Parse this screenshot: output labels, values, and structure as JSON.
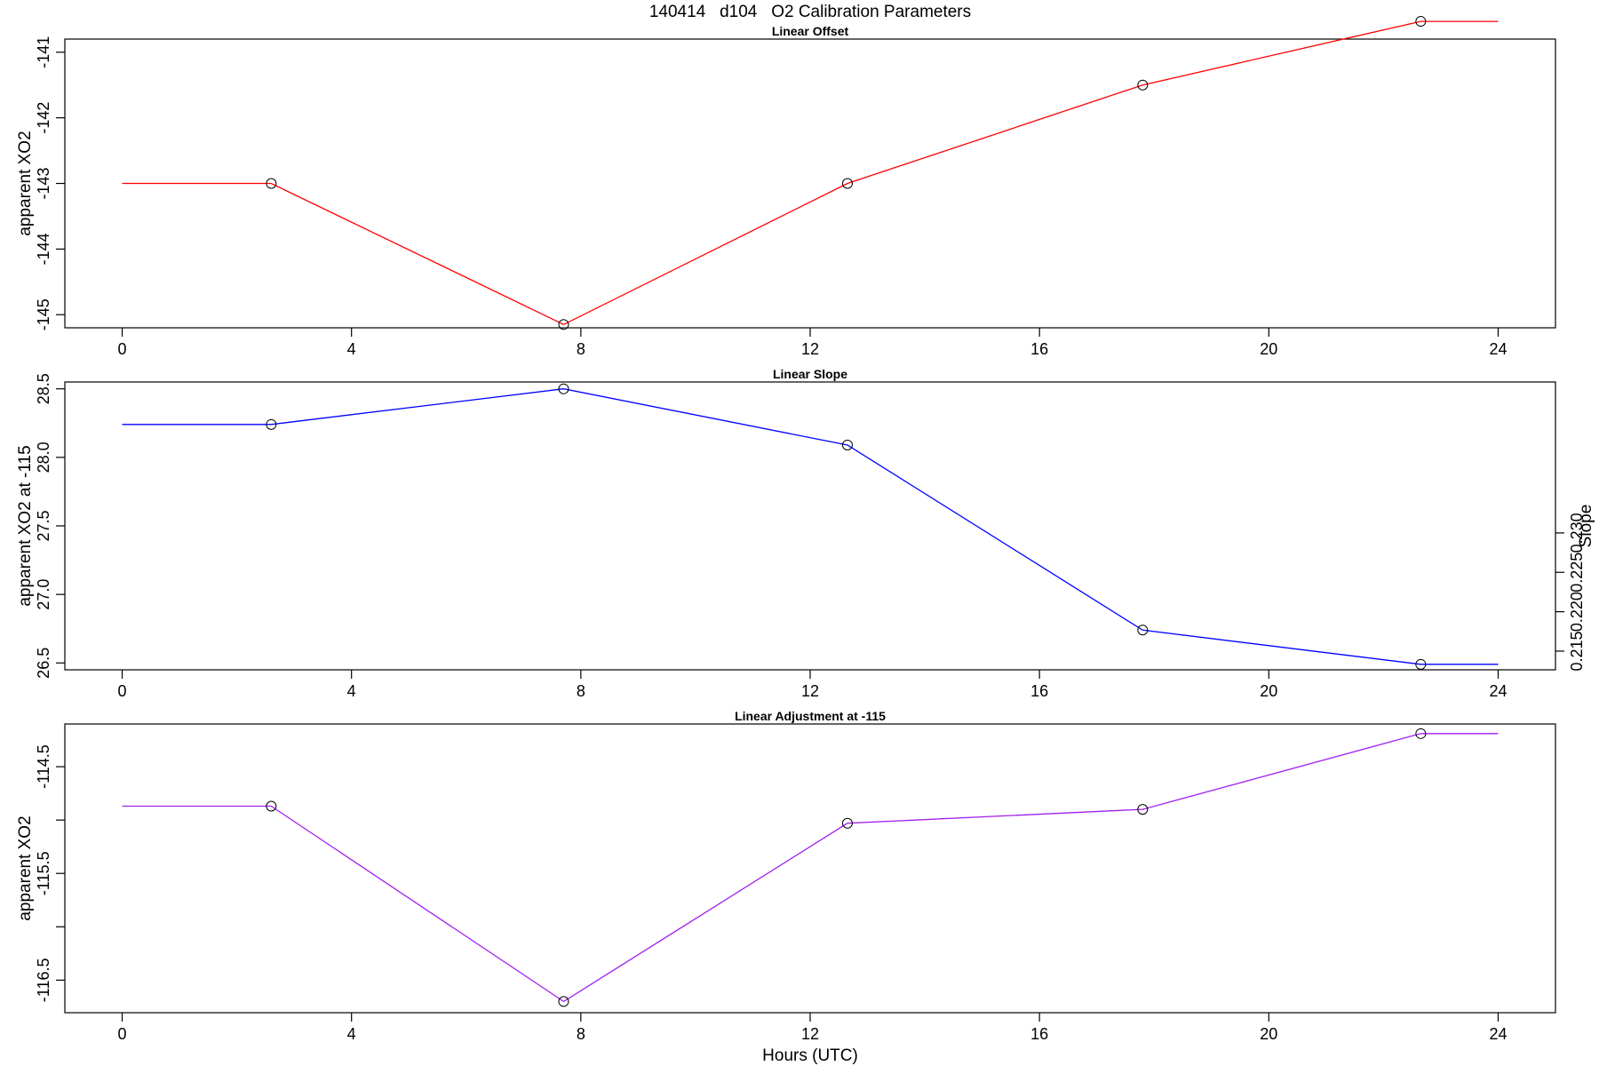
{
  "main_title": "140414   d104   O2 Calibration Parameters",
  "xlabel": "Hours (UTC)",
  "chart_data": [
    {
      "type": "line",
      "title": "Linear Offset",
      "ylabel": "apparent XO2",
      "xlim": [
        -1,
        25
      ],
      "ylim": [
        -145.2,
        -140.8
      ],
      "x_ticks": [
        0,
        4,
        8,
        12,
        16,
        20,
        24
      ],
      "y_ticks": [
        -145,
        -144,
        -143,
        -142,
        -141
      ],
      "y_tick_labels": [
        "-145",
        "-144",
        "-143",
        "-142",
        "-141"
      ],
      "series": [
        {
          "color": "#ff0000",
          "points": [
            {
              "x": 2.6,
              "y": -143.0
            },
            {
              "x": 7.7,
              "y": -145.15
            },
            {
              "x": 12.65,
              "y": -143.0
            },
            {
              "x": 17.8,
              "y": -141.5
            },
            {
              "x": 22.65,
              "y": -140.53
            }
          ],
          "extend_to": [
            0,
            24
          ]
        }
      ]
    },
    {
      "type": "line",
      "title": "Linear Slope",
      "ylabel": "apparent XO2 at -115",
      "ylabel_right": "Slope",
      "xlim": [
        -1,
        25
      ],
      "ylim": [
        26.45,
        28.55
      ],
      "x_ticks": [
        0,
        4,
        8,
        12,
        16,
        20,
        24
      ],
      "y_ticks": [
        26.5,
        27.0,
        27.5,
        28.0,
        28.5
      ],
      "y_tick_labels": [
        "26.5",
        "27.0",
        "27.5",
        "28.0",
        "28.5"
      ],
      "right_axis": {
        "ticks": [
          0.215,
          0.22,
          0.225,
          0.23
        ],
        "tick_labels": [
          "0.215",
          "0.220",
          "0.225",
          "0.230"
        ],
        "base_value": 26.5,
        "base_slope": 0.2135,
        "scale": 0.01739
      },
      "series": [
        {
          "color": "#0000ff",
          "points": [
            {
              "x": 2.6,
              "y": 28.24
            },
            {
              "x": 7.7,
              "y": 28.5
            },
            {
              "x": 12.65,
              "y": 28.09
            },
            {
              "x": 17.8,
              "y": 26.74
            },
            {
              "x": 22.65,
              "y": 26.49
            }
          ],
          "extend_to": [
            0,
            24
          ]
        }
      ]
    },
    {
      "type": "line",
      "title": "Linear Adjustment at -115",
      "ylabel": "apparent XO2",
      "xlim": [
        -1,
        25
      ],
      "ylim": [
        -116.805,
        -114.1
      ],
      "x_ticks": [
        0,
        4,
        8,
        12,
        16,
        20,
        24
      ],
      "y_ticks": [
        -116.5,
        -116,
        -115.5,
        -115,
        -114.5
      ],
      "y_tick_labels": [
        "-116.5",
        "",
        "-115.5",
        "",
        "-114.5"
      ],
      "series": [
        {
          "color": "#a020f0",
          "points": [
            {
              "x": 2.6,
              "y": -114.87
            },
            {
              "x": 7.7,
              "y": -116.7
            },
            {
              "x": 12.65,
              "y": -115.03
            },
            {
              "x": 17.8,
              "y": -114.9
            },
            {
              "x": 22.65,
              "y": -114.19
            }
          ],
          "extend_to": [
            0,
            24
          ]
        }
      ]
    }
  ]
}
